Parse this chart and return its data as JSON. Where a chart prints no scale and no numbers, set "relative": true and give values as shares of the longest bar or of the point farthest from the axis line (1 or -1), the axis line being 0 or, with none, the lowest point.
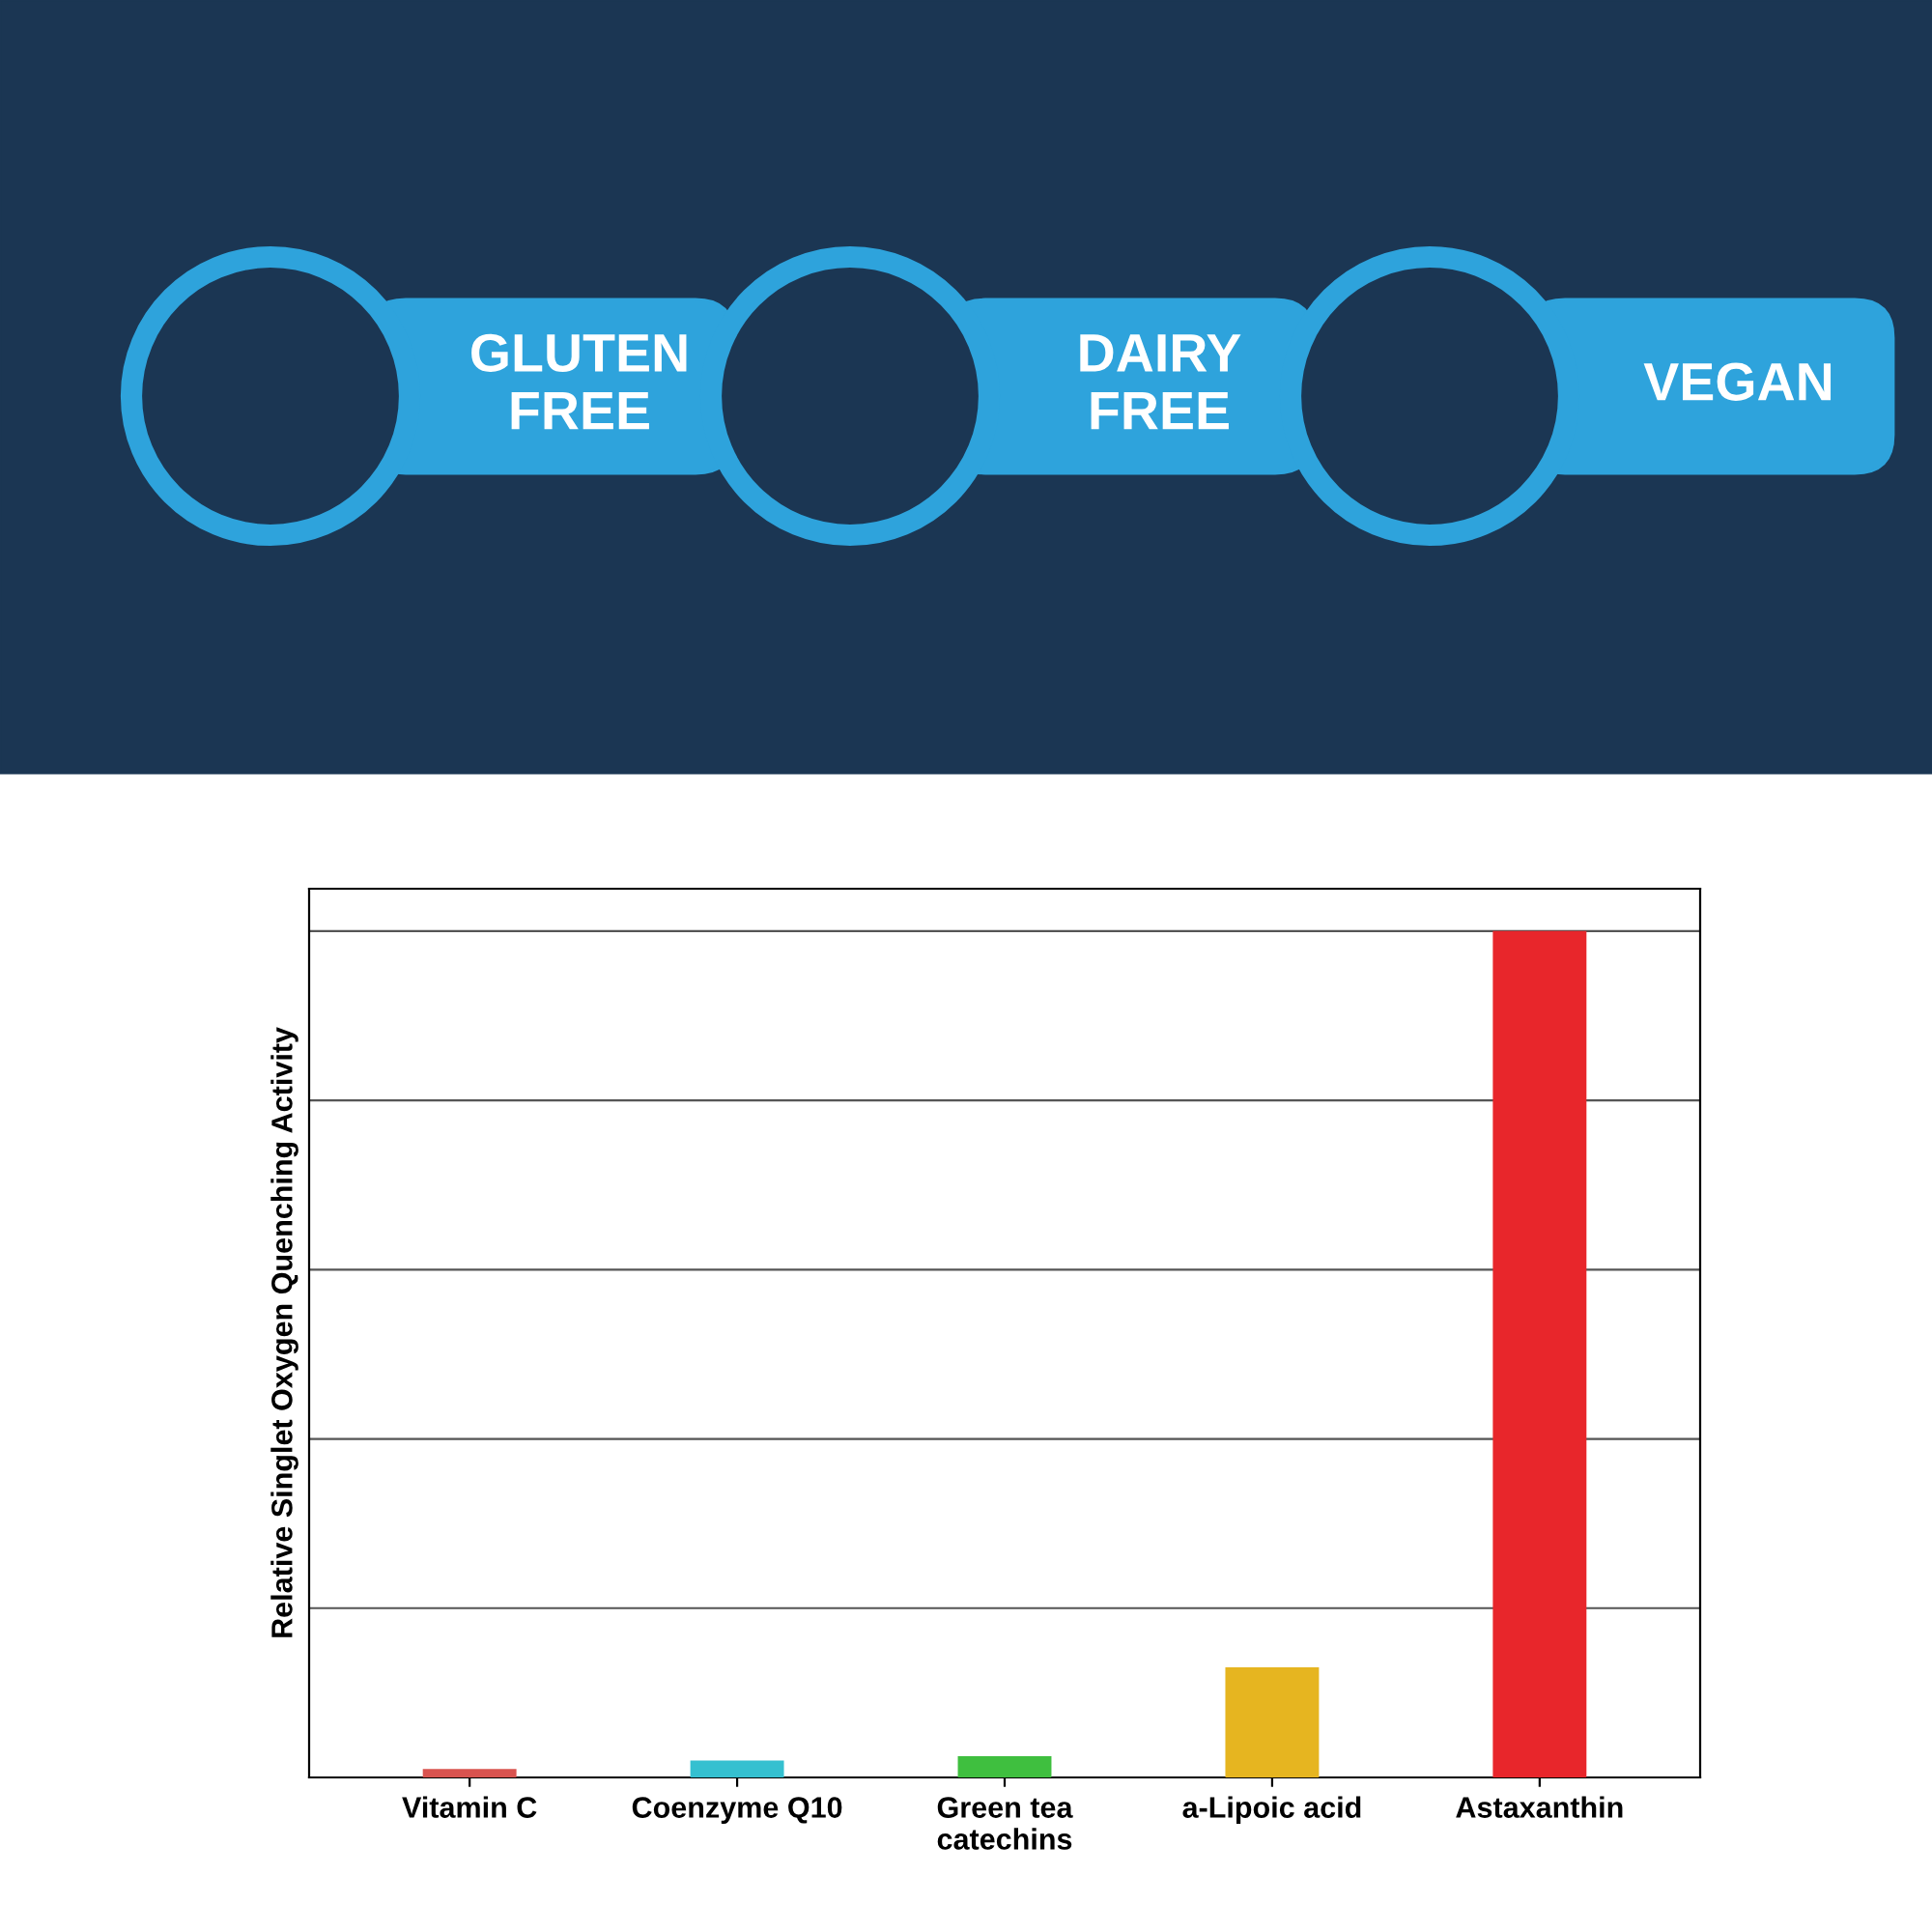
{
  "chart_data": {
    "type": "bar",
    "relative": true,
    "ylabel": "Relative Singlet Oxygen Quenching Activity",
    "categories": [
      "Vitamin C",
      "Coenzyme Q10",
      "Green tea\ncatechins",
      "a-Lipoic acid",
      "Astaxanthin"
    ],
    "values": [
      0.01,
      0.02,
      0.025,
      0.13,
      1
    ],
    "colors": [
      "#d9534f",
      "#35c0d0",
      "#3fbf3f",
      "#e6b520",
      "#e8262b"
    ],
    "grid": "y",
    "tick_labels": "x",
    "annotations": [
      "GLUTEN\nFREE",
      "DAIRY\nFREE",
      "VEGAN"
    ]
  }
}
